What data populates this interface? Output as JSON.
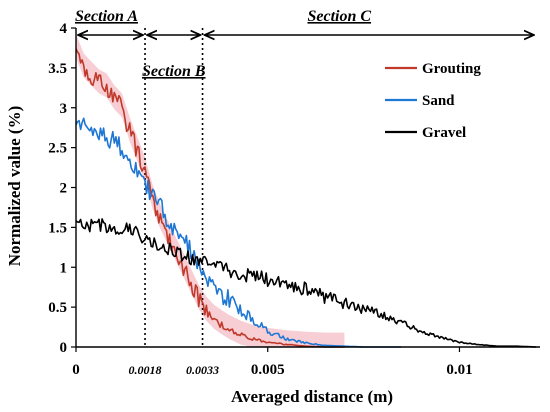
{
  "chart_data": {
    "type": "line",
    "xlabel": "Averaged distance (m)",
    "ylabel": "Normalized value (%)",
    "xlim": [
      0,
      0.0121
    ],
    "ylim": [
      0,
      4
    ],
    "x_ticks": [
      {
        "value": 0,
        "label": "0"
      },
      {
        "value": 0.005,
        "label": "0.005"
      },
      {
        "value": 0.01,
        "label": "0.01"
      }
    ],
    "y_ticks": [
      {
        "value": 0,
        "label": "0"
      },
      {
        "value": 0.5,
        "label": "0.5"
      },
      {
        "value": 1,
        "label": "1"
      },
      {
        "value": 1.5,
        "label": "1.5"
      },
      {
        "value": 2,
        "label": "2"
      },
      {
        "value": 2.5,
        "label": "2.5"
      },
      {
        "value": 3,
        "label": "3"
      },
      {
        "value": 3.5,
        "label": "3.5"
      },
      {
        "value": 4,
        "label": "4"
      }
    ],
    "boundaries": [
      {
        "value": 0.0018,
        "label": "0.0018"
      },
      {
        "value": 0.0033,
        "label": "0.0033"
      }
    ],
    "sections": [
      {
        "label": "Section A",
        "from": 0,
        "to": 0.0018
      },
      {
        "label": "Section B",
        "from": 0.0018,
        "to": 0.0033
      },
      {
        "label": "Section C",
        "from": 0.0033,
        "to": 0.0121
      }
    ],
    "legend_position": "top-right",
    "series": [
      {
        "name": "Grouting",
        "color": "#c0392b",
        "band_color": "#f6c9cf",
        "x": [
          0,
          0.0002,
          0.0004,
          0.0006,
          0.0008,
          0.001,
          0.0012,
          0.0014,
          0.0016,
          0.0018,
          0.002,
          0.0022,
          0.0024,
          0.0026,
          0.0028,
          0.003,
          0.0032,
          0.0034,
          0.0036,
          0.0038,
          0.004,
          0.0043,
          0.0046,
          0.005,
          0.0055,
          0.006,
          0.0065,
          0.007
        ],
        "y": [
          3.75,
          3.5,
          3.4,
          3.3,
          3.25,
          3.1,
          3.0,
          2.7,
          2.45,
          2.2,
          1.85,
          1.6,
          1.4,
          1.2,
          1.0,
          0.8,
          0.6,
          0.45,
          0.35,
          0.28,
          0.22,
          0.15,
          0.1,
          0.06,
          0.03,
          0.01,
          0.0,
          0.0
        ]
      },
      {
        "name": "Sand",
        "color": "#1f77d4",
        "x": [
          0,
          0.0002,
          0.0004,
          0.0006,
          0.0008,
          0.001,
          0.0012,
          0.0014,
          0.0016,
          0.0018,
          0.002,
          0.0022,
          0.0024,
          0.0026,
          0.0028,
          0.003,
          0.0032,
          0.0034,
          0.0036,
          0.0038,
          0.004,
          0.0043,
          0.0046,
          0.005,
          0.0055,
          0.006,
          0.0065,
          0.007,
          0.0075,
          0.008,
          0.0085
        ],
        "y": [
          2.7,
          2.8,
          2.75,
          2.7,
          2.6,
          2.6,
          2.5,
          2.35,
          2.2,
          2.05,
          1.9,
          1.75,
          1.6,
          1.45,
          1.35,
          1.2,
          1.05,
          0.9,
          0.75,
          0.65,
          0.6,
          0.45,
          0.35,
          0.2,
          0.1,
          0.05,
          0.02,
          0.01,
          0.0,
          0.0,
          0.0
        ]
      },
      {
        "name": "Gravel",
        "color": "#000000",
        "x": [
          0,
          0.0005,
          0.001,
          0.0015,
          0.002,
          0.0025,
          0.003,
          0.0035,
          0.004,
          0.0045,
          0.005,
          0.0055,
          0.006,
          0.0065,
          0.007,
          0.0075,
          0.008,
          0.0085,
          0.009,
          0.0095,
          0.01,
          0.0105,
          0.011,
          0.0115,
          0.012
        ],
        "y": [
          1.5,
          1.55,
          1.5,
          1.45,
          1.3,
          1.2,
          1.1,
          1.05,
          0.95,
          0.9,
          0.85,
          0.8,
          0.72,
          0.62,
          0.55,
          0.48,
          0.4,
          0.3,
          0.2,
          0.12,
          0.06,
          0.03,
          0.01,
          0.01,
          0.0
        ]
      }
    ]
  }
}
